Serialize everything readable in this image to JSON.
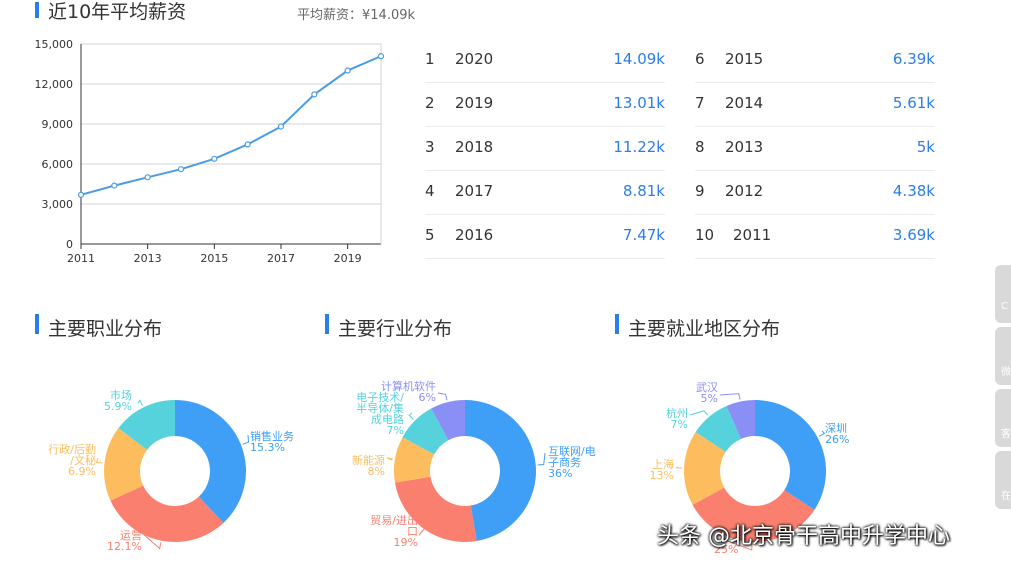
{
  "header": {
    "title": "近10年平均薪资",
    "avg_label": "平均薪资：¥14.09k"
  },
  "line_chart": {
    "type": "line",
    "x": [
      2011,
      2012,
      2013,
      2014,
      2015,
      2016,
      2017,
      2018,
      2019,
      2020
    ],
    "values": [
      3690,
      4380,
      5000,
      5610,
      6390,
      7470,
      8810,
      11220,
      13010,
      14090
    ],
    "ylim": [
      0,
      15000
    ],
    "yticks": [
      "0",
      "3,000",
      "6,000",
      "9,000",
      "12,000",
      "15,000"
    ],
    "xticks": [
      "2011",
      "2013",
      "2015",
      "2017",
      "2019"
    ],
    "color": "#4a9be8"
  },
  "salary_table": {
    "left": [
      {
        "rank": "1",
        "year": "2020",
        "value": "14.09k"
      },
      {
        "rank": "2",
        "year": "2019",
        "value": "13.01k"
      },
      {
        "rank": "3",
        "year": "2018",
        "value": "11.22k"
      },
      {
        "rank": "4",
        "year": "2017",
        "value": "8.81k"
      },
      {
        "rank": "5",
        "year": "2016",
        "value": "7.47k"
      }
    ],
    "right": [
      {
        "rank": "6",
        "year": "2015",
        "value": "6.39k"
      },
      {
        "rank": "7",
        "year": "2014",
        "value": "5.61k"
      },
      {
        "rank": "8",
        "year": "2013",
        "value": "5k"
      },
      {
        "rank": "9",
        "year": "2012",
        "value": "4.38k"
      },
      {
        "rank": "10",
        "year": "2011",
        "value": "3.69k"
      }
    ]
  },
  "chart_data": [
    {
      "type": "pie",
      "title": "主要职业分布",
      "slices": [
        {
          "label": "销售业务",
          "pct_label": "15.3%",
          "value": 15.3,
          "color": "#3f9ef5"
        },
        {
          "label": "运营",
          "pct_label": "12.1%",
          "value": 12.1,
          "color": "#fb7f6e"
        },
        {
          "label": "行政/后勤/文秘",
          "pct_label": "6.9%",
          "value": 6.9,
          "color": "#fdbd5f"
        },
        {
          "label": "市场",
          "pct_label": "5.9%",
          "value": 5.9,
          "color": "#55d2dc"
        }
      ]
    },
    {
      "type": "pie",
      "title": "主要行业分布",
      "slices": [
        {
          "label": "互联网/电子商务",
          "pct_label": "36%",
          "value": 36,
          "color": "#3f9ef5"
        },
        {
          "label": "贸易/进出口",
          "pct_label": "19%",
          "value": 19,
          "color": "#fb7f6e"
        },
        {
          "label": "新能源",
          "pct_label": "8%",
          "value": 8,
          "color": "#fdbd5f"
        },
        {
          "label": "电子技术/半导体/集成电路",
          "pct_label": "7%",
          "value": 7,
          "color": "#55d2dc"
        },
        {
          "label": "计算机软件",
          "pct_label": "6%",
          "value": 6,
          "color": "#8a8ff5"
        }
      ]
    },
    {
      "type": "pie",
      "title": "主要就业地区分布",
      "slices": [
        {
          "label": "深圳",
          "pct_label": "26%",
          "value": 26,
          "color": "#3f9ef5"
        },
        {
          "label": "",
          "pct_label": "25%",
          "value": 25,
          "color": "#fb7f6e"
        },
        {
          "label": "上海",
          "pct_label": "13%",
          "value": 13,
          "color": "#fdbd5f"
        },
        {
          "label": "杭州",
          "pct_label": "7%",
          "value": 7,
          "color": "#55d2dc"
        },
        {
          "label": "武汉",
          "pct_label": "5%",
          "value": 5,
          "color": "#8a8ff5"
        }
      ]
    }
  ],
  "watermark": "头条 @北京骨干高中升学中心"
}
